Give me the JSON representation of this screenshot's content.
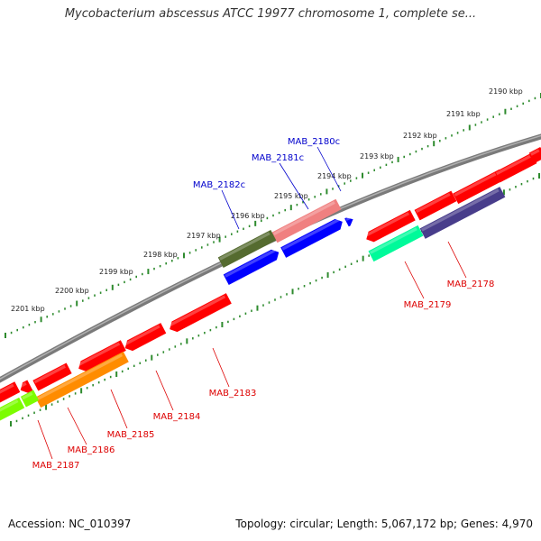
{
  "title": "Mycobacterium abscessus ATCC 19977 chromosome 1, complete se...",
  "footer": {
    "accession": "Accession: NC_010397",
    "summary": "Topology: circular; Length: 5,067,172 bp; Genes: 4,970"
  },
  "colors": {
    "backbone": "#808080",
    "ticks": "#2e8b2e",
    "forward_label": "#0000cc",
    "reverse_label": "#dd0000"
  },
  "kbp_ticks": [
    "2190 kbp",
    "2191 kbp",
    "2192 kbp",
    "2193 kbp",
    "2194 kbp",
    "2195 kbp",
    "2196 kbp",
    "2197 kbp",
    "2198 kbp",
    "2199 kbp",
    "2200 kbp",
    "2201 kbp"
  ],
  "genes_labeled": [
    {
      "name": "MAB_2180c",
      "strand": "forward",
      "color": "#0000ff"
    },
    {
      "name": "MAB_2181c",
      "strand": "forward",
      "color": "#f08080"
    },
    {
      "name": "MAB_2182c",
      "strand": "forward",
      "color": "#556b2f"
    },
    {
      "name": "MAB_2178",
      "strand": "reverse",
      "color": "#483d8b"
    },
    {
      "name": "MAB_2179",
      "strand": "reverse",
      "color": "#00fa9a"
    },
    {
      "name": "MAB_2183",
      "strand": "reverse",
      "color": "#ff0000"
    },
    {
      "name": "MAB_2184",
      "strand": "reverse",
      "color": "#ff0000"
    },
    {
      "name": "MAB_2185",
      "strand": "reverse",
      "color": "#ff8c00"
    },
    {
      "name": "MAB_2186",
      "strand": "reverse",
      "color": "#ff0000"
    },
    {
      "name": "MAB_2187",
      "strand": "reverse",
      "color": "#7cfc00"
    }
  ]
}
